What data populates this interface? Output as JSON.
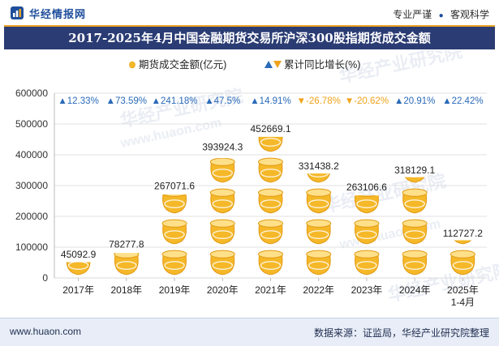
{
  "header": {
    "brand": "华经情报网",
    "tags": [
      "专业严谨",
      "客观科学"
    ]
  },
  "title": "2017-2025年4月中国金融期货交易所沪深300股指期货成交金额",
  "footer": {
    "url": "www.huaon.com",
    "source": "数据来源：证监局，华经产业研究院整理"
  },
  "watermarks": [
    "华经产业研究院",
    "www.huaon.com"
  ],
  "colors": {
    "coin": "#f5b829",
    "coin_dark": "#e29a12",
    "coin_light": "#ffe08a",
    "up": "#2a6ab8",
    "down": "#f0a21a",
    "grid": "#d8d8d8",
    "brand": "#1f4e9c"
  },
  "chart_data": {
    "type": "bar",
    "categories": [
      "2017年",
      "2018年",
      "2019年",
      "2020年",
      "2021年",
      "2022年",
      "2023年",
      "2024年",
      [
        "2025年",
        "1-4月"
      ]
    ],
    "series": [
      {
        "name": "期货成交金额(亿元)",
        "values": [
          45092.9,
          78277.8,
          267071.6,
          393924.3,
          452669.1,
          331438.2,
          263106.6,
          318129.1,
          112727.2
        ],
        "labels": [
          "45092.9",
          "78277.8",
          "267071.6",
          "393924.3",
          "452669.1",
          "331438.2",
          "263106.6",
          "318129.1",
          "112727.2"
        ]
      },
      {
        "name": "累计同比增长(%)",
        "values": [
          12.33,
          73.59,
          241.18,
          47.5,
          14.91,
          -26.78,
          -20.62,
          20.91,
          22.42
        ],
        "labels": [
          "12.33%",
          "73.59%",
          "241.18%",
          "47.5%",
          "14.91%",
          "-26.78%",
          "-20.62%",
          "20.91%",
          "22.42%"
        ]
      }
    ],
    "ylim": [
      0,
      600000
    ],
    "yticks": [
      "0",
      "100000",
      "200000",
      "300000",
      "400000",
      "500000",
      "600000"
    ],
    "grid": true,
    "legend_position": "top"
  }
}
